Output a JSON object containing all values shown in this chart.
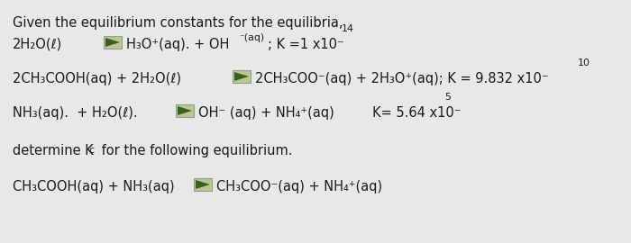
{
  "bg_color": "#e8e8e8",
  "text_color": "#1a1a1a",
  "font_size": 10.5,
  "font_family": "DejaVu Sans",
  "lines": {
    "title": "Given the equilibrium constants for the equilibria,",
    "eq1_left": "2H₂O(ℓ)",
    "eq1_right1": "H₃O⁺(aq). + OH",
    "eq1_sup1": "⁻(aq)",
    "eq1_k": "; K =1 x10⁻",
    "eq1_ksup": "14",
    "eq2_left": "2CH₃COOH(aq) + 2H₂O(ℓ)",
    "eq2_right": "2CH₃COO⁻(aq) + 2H₃O⁺(aq); K = 9.832 x10⁻",
    "eq2_ksup": "10",
    "eq3_left": "NH₃(aq).  + H₂O(ℓ).",
    "eq3_right": "OH⁻ (aq) + NH₄⁺(aq)",
    "eq3_k": "     K= 5.64 x10⁻",
    "eq3_ksup": "5",
    "det1": "determine K",
    "det2": "c",
    "det3": " for the following equilibrium.",
    "eq4_left": "CH₃COOH(aq) + NH₃(aq)",
    "eq4_right": "CH₃COO⁻(aq) + NH₄⁺(aq)"
  },
  "icon_color_bg": "#b8c890",
  "icon_color_tri": "#3a6020",
  "icon_border": "#999999"
}
